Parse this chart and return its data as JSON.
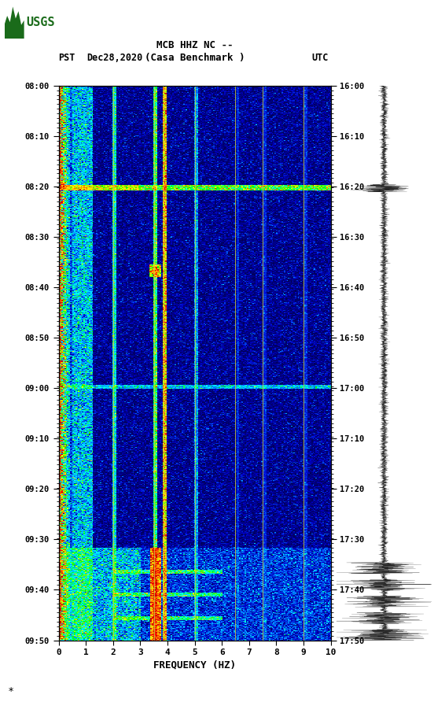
{
  "title_line1": "MCB HHZ NC --",
  "title_line2": "(Casa Benchmark )",
  "date_label": "Dec28,2020",
  "left_tz": "PST",
  "right_tz": "UTC",
  "left_times": [
    "08:00",
    "08:10",
    "08:20",
    "08:30",
    "08:40",
    "08:50",
    "09:00",
    "09:10",
    "09:20",
    "09:30",
    "09:40",
    "09:50"
  ],
  "right_times": [
    "16:00",
    "16:10",
    "16:20",
    "16:30",
    "16:40",
    "16:50",
    "17:00",
    "17:10",
    "17:20",
    "17:30",
    "17:40",
    "17:50"
  ],
  "freq_label": "FREQUENCY (HZ)",
  "freq_ticks": [
    0,
    1,
    2,
    3,
    4,
    5,
    6,
    7,
    8,
    9,
    10
  ],
  "usgs_green": "#1a6b1a",
  "fig_width": 5.52,
  "fig_height": 8.92,
  "n_time": 720,
  "n_freq": 200,
  "seed": 12345,
  "vlines": [
    2.0,
    3.5,
    3.85,
    5.0,
    6.5,
    7.5,
    9.0
  ],
  "vline_color": "#c8c840",
  "vline_alpha": 0.85
}
